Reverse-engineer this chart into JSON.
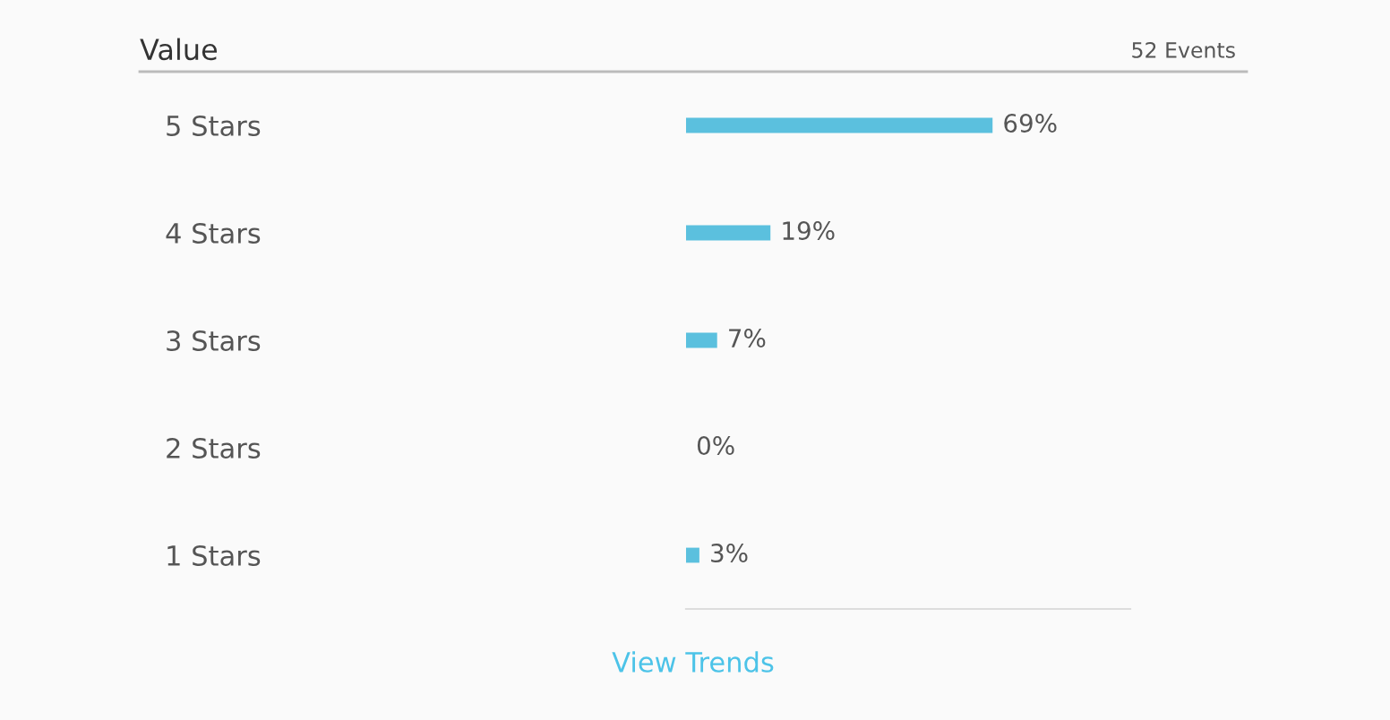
{
  "chart_data": {
    "type": "bar",
    "orientation": "horizontal",
    "title": "Value",
    "categories": [
      "5 Stars",
      "4 Stars",
      "3 Stars",
      "2 Stars",
      "1 Stars"
    ],
    "values": [
      69,
      19,
      7,
      0,
      3
    ],
    "color": "#5bc0de",
    "value_labels": [
      "69%",
      "19%",
      "7%",
      "0%",
      "3%"
    ],
    "xlim": [
      0,
      100
    ],
    "tick_labels": "y",
    "annotations": [
      "52 Events",
      "View Trends"
    ]
  }
}
